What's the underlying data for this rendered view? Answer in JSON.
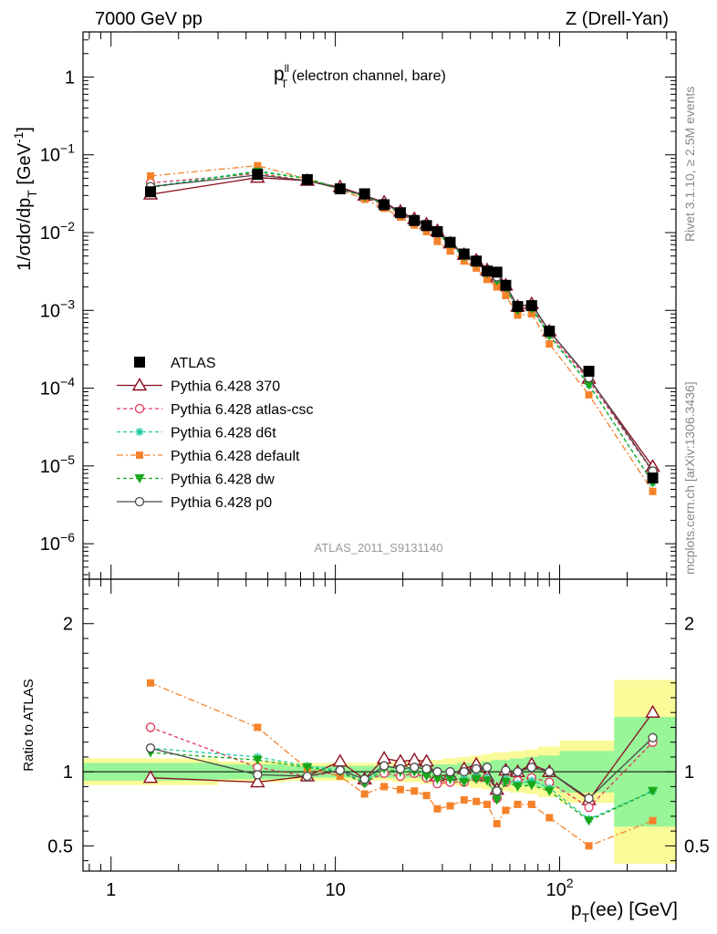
{
  "header": {
    "left": "7000 GeV pp",
    "right": "Z (Drell-Yan)"
  },
  "plot_title": {
    "main": "p",
    "sup": "ll",
    "sub": "T",
    "rest": " (electron channel, bare)"
  },
  "y_label": {
    "a": "1/σdσ/dp",
    "sub": "T",
    "b": " [GeV",
    "sup": "-1",
    "c": "]"
  },
  "x_label": {
    "a": "p",
    "sub": "T",
    "b": "(ee) [GeV]"
  },
  "ratio_label": "Ratio to ATLAS",
  "analysis_id": "ATLAS_2011_S9131140",
  "side_labels": {
    "rivet": "Rivet 3.1.10, ≥ 2.5M events",
    "mcplots": "mcplots.cern.ch [arXiv:1306.3436]"
  },
  "colors": {
    "ATLAS": "#000000",
    "370": "#8b0a1e",
    "atlas-csc": "#e0355a",
    "d6t": "#1fc8a0",
    "default": "#f5822a",
    "dw": "#18a818",
    "p0": "#4a4a4a",
    "band_inner": "#98f598",
    "band_outer": "#fafa98"
  },
  "chart_data": [
    {
      "type": "scatter",
      "scale": {
        "x": "log",
        "y": "log"
      },
      "xlim": [
        0.75,
        330
      ],
      "ylim": [
        3.5e-07,
        3.8
      ],
      "y_ticks": [
        {
          "v": 1,
          "b": "1",
          "e": ""
        },
        {
          "v": 0.1,
          "b": "10",
          "e": "−1"
        },
        {
          "v": 0.01,
          "b": "10",
          "e": "−2"
        },
        {
          "v": 0.001,
          "b": "10",
          "e": "−3"
        },
        {
          "v": 0.0001,
          "b": "10",
          "e": "−4"
        },
        {
          "v": 1e-05,
          "b": "10",
          "e": "−5"
        },
        {
          "v": 1e-06,
          "b": "10",
          "e": "−6"
        }
      ],
      "x": [
        1.5,
        4.5,
        7.5,
        10.5,
        13.5,
        16.5,
        19.5,
        22.5,
        25.5,
        28.5,
        32.5,
        37.5,
        42.5,
        47.5,
        52.5,
        57.5,
        65,
        75,
        90,
        135,
        260
      ],
      "series": [
        {
          "name": "ATLAS",
          "key": "ATLAS",
          "marker": "square",
          "dash": "",
          "values": [
            0.0335,
            0.056,
            0.048,
            0.0365,
            0.0315,
            0.0228,
            0.018,
            0.0143,
            0.0123,
            0.0103,
            0.0075,
            0.0053,
            0.0043,
            0.0032,
            0.0031,
            0.0021,
            0.00112,
            0.00115,
            0.00054,
            0.000165,
            7e-06
          ]
        },
        {
          "name": "Pythia 6.428 370",
          "key": "370",
          "marker": "triangle-open",
          "dash": "",
          "values": [
            0.031,
            0.051,
            0.0465,
            0.0385,
            0.03,
            0.0245,
            0.0187,
            0.015,
            0.0128,
            0.0105,
            0.0073,
            0.0052,
            0.0044,
            0.0033,
            0.0027,
            0.0021,
            0.00112,
            0.00121,
            0.00054,
            0.000133,
            9.8e-06
          ]
        },
        {
          "name": "Pythia 6.428 atlas-csc",
          "key": "atlas-csc",
          "marker": "circle-open",
          "dash": "4,3",
          "values": [
            0.0435,
            0.0575,
            0.0465,
            0.0368,
            0.0293,
            0.0225,
            0.0175,
            0.0142,
            0.0118,
            0.0096,
            0.007,
            0.0049,
            0.0041,
            0.0031,
            0.0025,
            0.00195,
            0.00105,
            0.0011,
            0.0005,
            0.000125,
            8.4e-06
          ]
        },
        {
          "name": "Pythia 6.428 d6t",
          "key": "d6t",
          "marker": "star",
          "dash": "4,3",
          "values": [
            0.039,
            0.062,
            0.05,
            0.0368,
            0.0293,
            0.0237,
            0.0183,
            0.0145,
            0.0122,
            0.01,
            0.0072,
            0.005,
            0.0042,
            0.0031,
            0.0025,
            0.002,
            0.00103,
            0.00108,
            0.00048,
            0.000112,
            6.1e-06
          ]
        },
        {
          "name": "Pythia 6.428 default",
          "key": "default",
          "marker": "square-small",
          "dash": "7,3,2,3",
          "values": [
            0.0535,
            0.0725,
            0.049,
            0.0355,
            0.0268,
            0.0205,
            0.0158,
            0.0125,
            0.0103,
            0.0077,
            0.0058,
            0.0043,
            0.0035,
            0.0025,
            0.002,
            0.00155,
            0.00087,
            0.0009,
            0.00037,
            8.2e-05,
            4.7e-06
          ]
        },
        {
          "name": "Pythia 6.428 dw",
          "key": "dw",
          "marker": "triangle-down",
          "dash": "4,3",
          "values": [
            0.038,
            0.0605,
            0.0495,
            0.0365,
            0.029,
            0.0233,
            0.018,
            0.0143,
            0.012,
            0.0098,
            0.0071,
            0.0049,
            0.0041,
            0.003,
            0.0024,
            0.00195,
            0.001,
            0.00105,
            0.00047,
            0.00011,
            6.1e-06
          ]
        },
        {
          "name": "Pythia 6.428 p0",
          "key": "p0",
          "marker": "circle-open",
          "dash": "",
          "values": [
            0.039,
            0.055,
            0.0465,
            0.0368,
            0.03,
            0.0237,
            0.0183,
            0.0148,
            0.0125,
            0.0103,
            0.0075,
            0.0053,
            0.0044,
            0.0033,
            0.0027,
            0.00212,
            0.00113,
            0.00118,
            0.00054,
            0.000136,
            8.6e-06
          ]
        }
      ]
    },
    {
      "type": "scatter",
      "scale": {
        "x": "log",
        "y": "linear"
      },
      "xlim": [
        0.75,
        330
      ],
      "ylim": [
        0.33,
        2.3
      ],
      "y_ticks": [
        0.5,
        1,
        2
      ],
      "x_ticks": [
        {
          "v": 1,
          "b": "1",
          "e": ""
        },
        {
          "v": 10,
          "b": "10",
          "e": ""
        },
        {
          "v": 100,
          "b": "10",
          "e": "2"
        }
      ],
      "reference": 1,
      "bands": [
        {
          "x0": 0.75,
          "x1": 3,
          "inner": 0.06,
          "outer": 0.09
        },
        {
          "x0": 3,
          "x1": 6,
          "inner": 0.05,
          "outer": 0.07
        },
        {
          "x0": 6,
          "x1": 9,
          "inner": 0.04,
          "outer": 0.06
        },
        {
          "x0": 9,
          "x1": 12,
          "inner": 0.04,
          "outer": 0.06
        },
        {
          "x0": 12,
          "x1": 15,
          "inner": 0.04,
          "outer": 0.06
        },
        {
          "x0": 15,
          "x1": 18,
          "inner": 0.04,
          "outer": 0.06
        },
        {
          "x0": 18,
          "x1": 21,
          "inner": 0.04,
          "outer": 0.07
        },
        {
          "x0": 21,
          "x1": 24,
          "inner": 0.04,
          "outer": 0.07
        },
        {
          "x0": 24,
          "x1": 27,
          "inner": 0.05,
          "outer": 0.08
        },
        {
          "x0": 27,
          "x1": 30,
          "inner": 0.05,
          "outer": 0.08
        },
        {
          "x0": 30,
          "x1": 35,
          "inner": 0.05,
          "outer": 0.09
        },
        {
          "x0": 35,
          "x1": 40,
          "inner": 0.06,
          "outer": 0.1
        },
        {
          "x0": 40,
          "x1": 45,
          "inner": 0.06,
          "outer": 0.11
        },
        {
          "x0": 45,
          "x1": 50,
          "inner": 0.07,
          "outer": 0.12
        },
        {
          "x0": 50,
          "x1": 55,
          "inner": 0.08,
          "outer": 0.13
        },
        {
          "x0": 55,
          "x1": 60,
          "inner": 0.08,
          "outer": 0.13
        },
        {
          "x0": 60,
          "x1": 70,
          "inner": 0.09,
          "outer": 0.14
        },
        {
          "x0": 70,
          "x1": 80,
          "inner": 0.1,
          "outer": 0.15
        },
        {
          "x0": 80,
          "x1": 100,
          "inner": 0.11,
          "outer": 0.17
        },
        {
          "x0": 100,
          "x1": 175,
          "inner": 0.14,
          "outer": 0.21
        },
        {
          "x0": 175,
          "x1": 330,
          "inner": 0.37,
          "outer": 0.62
        }
      ],
      "x": [
        1.5,
        4.5,
        7.5,
        10.5,
        13.5,
        16.5,
        19.5,
        22.5,
        25.5,
        28.5,
        32.5,
        37.5,
        42.5,
        47.5,
        52.5,
        57.5,
        65,
        75,
        90,
        135,
        260
      ],
      "series": [
        {
          "name": "Pythia 6.428 370",
          "key": "370",
          "marker": "triangle-open",
          "dash": "",
          "values": [
            0.96,
            0.93,
            0.97,
            1.07,
            0.95,
            1.09,
            1.07,
            1.08,
            1.07,
            0.97,
            0.98,
            1.02,
            1.05,
            0.97,
            0.88,
            1.01,
            1.0,
            1.05,
            1.0,
            0.81,
            1.4
          ]
        },
        {
          "name": "Pythia 6.428 atlas-csc",
          "key": "atlas-csc",
          "marker": "circle-open",
          "dash": "4,3",
          "values": [
            1.3,
            1.03,
            0.97,
            1.0,
            0.93,
            0.99,
            0.97,
            0.99,
            0.96,
            0.92,
            0.93,
            0.93,
            0.96,
            0.96,
            0.82,
            0.93,
            0.94,
            0.96,
            0.93,
            0.76,
            1.2
          ]
        },
        {
          "name": "Pythia 6.428 d6t",
          "key": "d6t",
          "marker": "star",
          "dash": "4,3",
          "values": [
            1.16,
            1.1,
            1.04,
            1.01,
            0.93,
            1.04,
            1.02,
            1.01,
            0.99,
            0.97,
            0.96,
            0.95,
            0.97,
            0.96,
            0.83,
            0.95,
            0.92,
            0.94,
            0.89,
            0.68,
            0.87
          ]
        },
        {
          "name": "Pythia 6.428 default",
          "key": "default",
          "marker": "square-small",
          "dash": "7,3,2,3",
          "values": [
            1.6,
            1.3,
            1.02,
            0.97,
            0.85,
            0.9,
            0.88,
            0.87,
            0.84,
            0.75,
            0.77,
            0.81,
            0.8,
            0.78,
            0.65,
            0.74,
            0.78,
            0.78,
            0.69,
            0.5,
            0.67
          ]
        },
        {
          "name": "Pythia 6.428 dw",
          "key": "dw",
          "marker": "triangle-down",
          "dash": "4,3",
          "values": [
            1.13,
            1.08,
            1.03,
            1.0,
            0.92,
            1.02,
            1.0,
            1.0,
            0.97,
            0.95,
            0.95,
            0.93,
            0.95,
            0.94,
            0.81,
            0.93,
            0.9,
            0.91,
            0.87,
            0.67,
            0.87
          ]
        },
        {
          "name": "Pythia 6.428 p0",
          "key": "p0",
          "marker": "circle-open",
          "dash": "",
          "values": [
            1.16,
            0.98,
            0.97,
            1.01,
            0.95,
            1.04,
            1.02,
            1.03,
            1.02,
            1.0,
            1.0,
            1.0,
            1.02,
            1.03,
            0.87,
            1.01,
            1.0,
            1.03,
            1.0,
            0.82,
            1.23
          ]
        }
      ]
    }
  ]
}
